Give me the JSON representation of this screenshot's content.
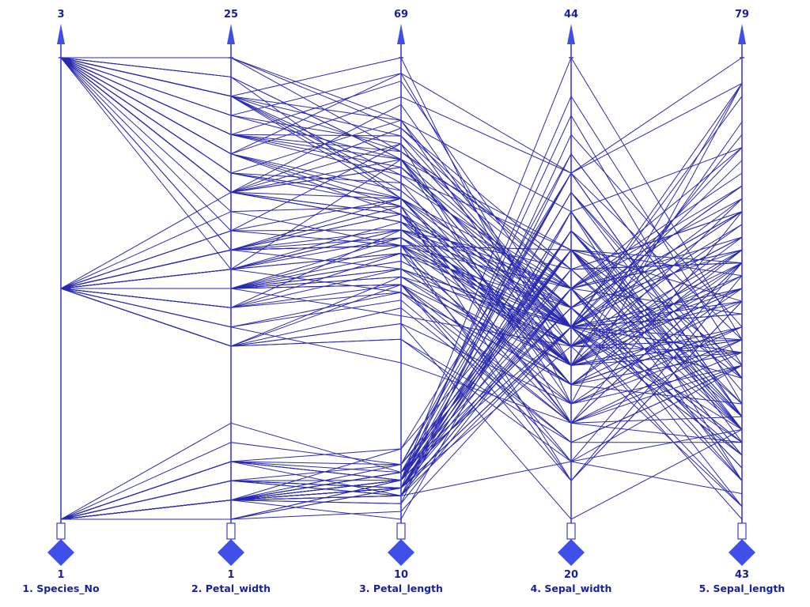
{
  "chart_data": {
    "type": "parallel_coordinates",
    "title": "",
    "colors": {
      "lines": "#2a2ab0",
      "axes": "#3b3bd6",
      "marker": "#3f4fe8",
      "text": "#1a2299"
    },
    "axes": [
      {
        "name": "1. Species_No",
        "min": 1,
        "max": 3,
        "min_label": "1",
        "max_label": "3"
      },
      {
        "name": "2. Petal_width",
        "min": 1,
        "max": 25,
        "min_label": "1",
        "max_label": "25"
      },
      {
        "name": "3. Petal_length",
        "min": 10,
        "max": 69,
        "min_label": "10",
        "max_label": "69"
      },
      {
        "name": "4. Sepal_width",
        "min": 20,
        "max": 44,
        "min_label": "20",
        "max_label": "44"
      },
      {
        "name": "5. Sepal_length",
        "min": 43,
        "max": 79,
        "min_label": "43",
        "max_label": "79"
      }
    ],
    "records": [
      [
        1,
        2,
        14,
        35,
        51
      ],
      [
        1,
        2,
        14,
        30,
        49
      ],
      [
        1,
        2,
        13,
        32,
        47
      ],
      [
        1,
        2,
        15,
        31,
        46
      ],
      [
        1,
        2,
        14,
        36,
        50
      ],
      [
        1,
        4,
        17,
        39,
        54
      ],
      [
        1,
        3,
        14,
        34,
        46
      ],
      [
        1,
        2,
        15,
        34,
        50
      ],
      [
        1,
        2,
        14,
        29,
        44
      ],
      [
        1,
        1,
        15,
        31,
        49
      ],
      [
        1,
        2,
        15,
        37,
        54
      ],
      [
        1,
        2,
        16,
        34,
        48
      ],
      [
        1,
        1,
        14,
        30,
        48
      ],
      [
        1,
        1,
        11,
        30,
        43
      ],
      [
        1,
        2,
        12,
        40,
        58
      ],
      [
        1,
        4,
        15,
        44,
        57
      ],
      [
        1,
        4,
        13,
        39,
        54
      ],
      [
        1,
        3,
        14,
        35,
        51
      ],
      [
        1,
        3,
        17,
        38,
        57
      ],
      [
        1,
        3,
        15,
        38,
        51
      ],
      [
        1,
        2,
        17,
        34,
        54
      ],
      [
        1,
        4,
        15,
        37,
        51
      ],
      [
        1,
        2,
        10,
        36,
        46
      ],
      [
        1,
        5,
        17,
        33,
        51
      ],
      [
        1,
        2,
        19,
        34,
        48
      ],
      [
        1,
        2,
        16,
        30,
        50
      ],
      [
        1,
        4,
        16,
        34,
        50
      ],
      [
        1,
        2,
        15,
        35,
        52
      ],
      [
        1,
        2,
        14,
        34,
        52
      ],
      [
        1,
        2,
        16,
        32,
        47
      ],
      [
        1,
        2,
        16,
        31,
        48
      ],
      [
        1,
        4,
        15,
        34,
        54
      ],
      [
        1,
        1,
        15,
        41,
        52
      ],
      [
        1,
        2,
        14,
        42,
        55
      ],
      [
        1,
        2,
        15,
        31,
        49
      ],
      [
        1,
        2,
        12,
        32,
        50
      ],
      [
        1,
        2,
        13,
        35,
        55
      ],
      [
        1,
        1,
        14,
        36,
        49
      ],
      [
        1,
        2,
        13,
        30,
        44
      ],
      [
        1,
        2,
        15,
        34,
        51
      ],
      [
        1,
        3,
        13,
        35,
        50
      ],
      [
        1,
        3,
        13,
        23,
        45
      ],
      [
        1,
        2,
        13,
        32,
        44
      ],
      [
        1,
        6,
        16,
        35,
        50
      ],
      [
        1,
        4,
        19,
        38,
        51
      ],
      [
        1,
        3,
        14,
        30,
        48
      ],
      [
        1,
        2,
        16,
        38,
        51
      ],
      [
        1,
        2,
        14,
        32,
        46
      ],
      [
        1,
        2,
        15,
        37,
        53
      ],
      [
        1,
        2,
        14,
        33,
        50
      ],
      [
        2,
        14,
        47,
        32,
        70
      ],
      [
        2,
        15,
        45,
        32,
        64
      ],
      [
        2,
        15,
        49,
        31,
        69
      ],
      [
        2,
        13,
        40,
        23,
        55
      ],
      [
        2,
        15,
        46,
        28,
        65
      ],
      [
        2,
        13,
        45,
        28,
        57
      ],
      [
        2,
        16,
        47,
        33,
        63
      ],
      [
        2,
        10,
        33,
        24,
        49
      ],
      [
        2,
        13,
        46,
        29,
        66
      ],
      [
        2,
        14,
        39,
        27,
        52
      ],
      [
        2,
        10,
        35,
        20,
        50
      ],
      [
        2,
        15,
        42,
        30,
        59
      ],
      [
        2,
        10,
        40,
        22,
        60
      ],
      [
        2,
        14,
        47,
        29,
        61
      ],
      [
        2,
        13,
        36,
        29,
        56
      ],
      [
        2,
        14,
        44,
        31,
        67
      ],
      [
        2,
        15,
        45,
        30,
        56
      ],
      [
        2,
        10,
        41,
        27,
        58
      ],
      [
        2,
        15,
        45,
        22,
        62
      ],
      [
        2,
        11,
        39,
        25,
        56
      ],
      [
        2,
        18,
        48,
        32,
        59
      ],
      [
        2,
        13,
        40,
        28,
        61
      ],
      [
        2,
        15,
        49,
        25,
        63
      ],
      [
        2,
        12,
        47,
        28,
        61
      ],
      [
        2,
        13,
        43,
        29,
        64
      ],
      [
        2,
        14,
        44,
        30,
        66
      ],
      [
        2,
        14,
        48,
        28,
        68
      ],
      [
        2,
        17,
        50,
        30,
        67
      ],
      [
        2,
        15,
        45,
        29,
        60
      ],
      [
        2,
        10,
        35,
        26,
        57
      ],
      [
        2,
        11,
        38,
        24,
        55
      ],
      [
        2,
        10,
        37,
        24,
        55
      ],
      [
        2,
        12,
        39,
        27,
        58
      ],
      [
        2,
        16,
        51,
        27,
        60
      ],
      [
        2,
        15,
        45,
        30,
        54
      ],
      [
        2,
        16,
        45,
        34,
        60
      ],
      [
        2,
        15,
        47,
        31,
        67
      ],
      [
        2,
        13,
        44,
        23,
        63
      ],
      [
        2,
        13,
        41,
        30,
        56
      ],
      [
        2,
        13,
        40,
        25,
        55
      ],
      [
        2,
        12,
        44,
        26,
        55
      ],
      [
        2,
        14,
        46,
        30,
        61
      ],
      [
        2,
        12,
        40,
        26,
        58
      ],
      [
        2,
        10,
        33,
        23,
        50
      ],
      [
        2,
        13,
        42,
        27,
        56
      ],
      [
        2,
        12,
        42,
        30,
        57
      ],
      [
        2,
        13,
        42,
        29,
        57
      ],
      [
        2,
        13,
        43,
        29,
        62
      ],
      [
        2,
        11,
        30,
        25,
        51
      ],
      [
        2,
        13,
        41,
        28,
        57
      ],
      [
        3,
        25,
        60,
        33,
        63
      ],
      [
        3,
        19,
        51,
        27,
        58
      ],
      [
        3,
        21,
        59,
        30,
        71
      ],
      [
        3,
        18,
        56,
        29,
        63
      ],
      [
        3,
        22,
        58,
        30,
        65
      ],
      [
        3,
        21,
        66,
        30,
        76
      ],
      [
        3,
        17,
        45,
        25,
        49
      ],
      [
        3,
        18,
        63,
        29,
        73
      ],
      [
        3,
        18,
        58,
        25,
        67
      ],
      [
        3,
        25,
        61,
        36,
        72
      ],
      [
        3,
        20,
        51,
        32,
        65
      ],
      [
        3,
        19,
        53,
        27,
        64
      ],
      [
        3,
        21,
        55,
        30,
        68
      ],
      [
        3,
        20,
        50,
        25,
        57
      ],
      [
        3,
        24,
        51,
        28,
        58
      ],
      [
        3,
        23,
        53,
        32,
        64
      ],
      [
        3,
        18,
        55,
        30,
        65
      ],
      [
        3,
        22,
        67,
        38,
        77
      ],
      [
        3,
        23,
        69,
        26,
        77
      ],
      [
        3,
        15,
        50,
        22,
        60
      ],
      [
        3,
        23,
        57,
        32,
        69
      ],
      [
        3,
        20,
        49,
        28,
        56
      ],
      [
        3,
        20,
        67,
        28,
        77
      ],
      [
        3,
        18,
        49,
        27,
        63
      ],
      [
        3,
        21,
        57,
        33,
        67
      ],
      [
        3,
        18,
        60,
        32,
        72
      ],
      [
        3,
        18,
        48,
        28,
        62
      ],
      [
        3,
        18,
        49,
        30,
        61
      ],
      [
        3,
        21,
        56,
        28,
        64
      ],
      [
        3,
        16,
        58,
        30,
        72
      ],
      [
        3,
        19,
        61,
        28,
        74
      ],
      [
        3,
        20,
        64,
        38,
        79
      ],
      [
        3,
        22,
        56,
        28,
        64
      ],
      [
        3,
        15,
        51,
        28,
        63
      ],
      [
        3,
        14,
        56,
        26,
        61
      ],
      [
        3,
        23,
        61,
        30,
        77
      ],
      [
        3,
        24,
        56,
        34,
        63
      ],
      [
        3,
        18,
        55,
        31,
        64
      ],
      [
        3,
        18,
        48,
        30,
        60
      ],
      [
        3,
        21,
        54,
        31,
        69
      ],
      [
        3,
        24,
        56,
        31,
        67
      ],
      [
        3,
        23,
        51,
        31,
        69
      ],
      [
        3,
        19,
        51,
        27,
        58
      ],
      [
        3,
        23,
        59,
        32,
        68
      ],
      [
        3,
        25,
        57,
        33,
        67
      ],
      [
        3,
        23,
        52,
        30,
        67
      ],
      [
        3,
        19,
        50,
        25,
        63
      ],
      [
        3,
        20,
        52,
        30,
        65
      ],
      [
        3,
        23,
        54,
        34,
        62
      ],
      [
        3,
        18,
        51,
        30,
        59
      ]
    ]
  }
}
